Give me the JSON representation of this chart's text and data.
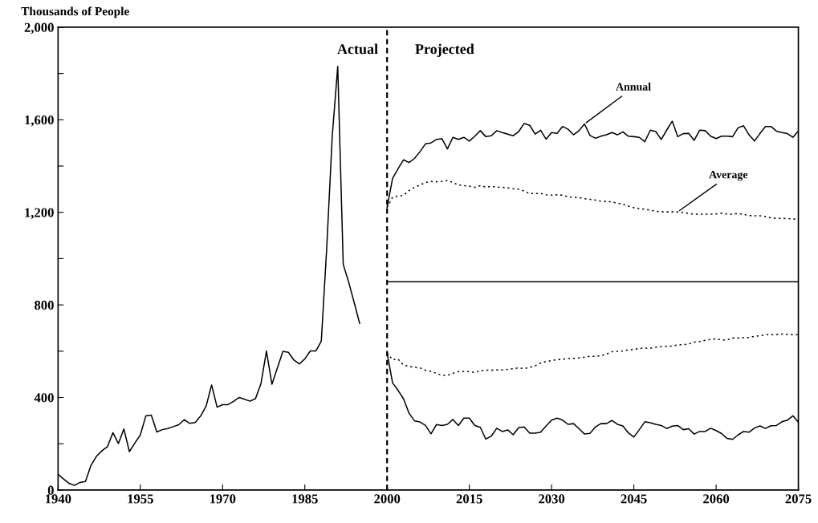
{
  "chart_data": {
    "type": "line",
    "ylabel": "Thousands of People",
    "xlim": [
      1940,
      2075
    ],
    "xticks": [
      1940,
      1955,
      1970,
      1985,
      2000,
      2015,
      2030,
      2045,
      2060,
      2075
    ],
    "ylim": [
      0,
      2000
    ],
    "yticks": [
      0,
      {
        "value": 200,
        "label": null
      },
      400,
      {
        "value": 600,
        "label": null
      },
      800,
      {
        "value": 1000,
        "label": null
      },
      {
        "value": 1200,
        "label": "1,200"
      },
      {
        "value": 1400,
        "label": null
      },
      {
        "value": 1600,
        "label": "1,600"
      },
      {
        "value": 1800,
        "label": null
      },
      {
        "value": 2000,
        "label": "2,000"
      }
    ],
    "grid": false,
    "legend": false,
    "ref_lines": [
      {
        "axis": "x",
        "value": 2000,
        "label": null,
        "color": "#000000",
        "line_style": "dashed"
      }
    ],
    "annotations": [
      "Actual",
      "Projected",
      {
        "text": "Annual",
        "x": 2036,
        "y": 1582
      },
      {
        "text": "Average",
        "x": 2053,
        "y": 1202
      }
    ],
    "series": [
      {
        "color": "#000000",
        "line_style": "solid",
        "x": [
          1940,
          1941,
          1942,
          1943,
          1944,
          1945,
          1946,
          1947,
          1948,
          1949,
          1950,
          1951,
          1952,
          1953,
          1954,
          1955,
          1956,
          1957,
          1958,
          1959,
          1960,
          1961,
          1962,
          1963,
          1964,
          1965,
          1966,
          1967,
          1968,
          1969,
          1970,
          1971,
          1972,
          1973,
          1974,
          1975,
          1976,
          1977,
          1978,
          1979,
          1980,
          1981,
          1982,
          1983,
          1984,
          1985,
          1986,
          1987,
          1988,
          1989,
          1990,
          1991,
          1992,
          1993,
          1994,
          1995
        ],
        "values": [
          68,
          48,
          29,
          20,
          33,
          37,
          107,
          146,
          170,
          187,
          248,
          201,
          264,
          166,
          203,
          238,
          320,
          324,
          251,
          261,
          266,
          274,
          282,
          304,
          288,
          292,
          320,
          363,
          454,
          358,
          369,
          369,
          383,
          400,
          392,
          384,
          395,
          460,
          601,
          457,
          528,
          599,
          595,
          562,
          545,
          567,
          601,
          601,
          643,
          1050,
          1530,
          1831,
          975,
          898,
          810,
          720
        ]
      },
      {
        "color": "#000000",
        "line_style": "solid",
        "x": [
          2000,
          2001,
          2002,
          2003,
          2004,
          2005,
          2006,
          2007,
          2008,
          2009,
          2010,
          2011,
          2012,
          2013,
          2014,
          2015,
          2016,
          2017,
          2018,
          2019,
          2020,
          2021,
          2022,
          2023,
          2024,
          2025,
          2026,
          2027,
          2028,
          2029,
          2030,
          2031,
          2032,
          2033,
          2034,
          2035,
          2036,
          2037,
          2038,
          2039,
          2040,
          2041,
          2042,
          2043,
          2044,
          2045,
          2046,
          2047,
          2048,
          2049,
          2050,
          2051,
          2052,
          2053,
          2054,
          2055,
          2056,
          2057,
          2058,
          2059,
          2060,
          2061,
          2062,
          2063,
          2064,
          2065,
          2066,
          2067,
          2068,
          2069,
          2070,
          2071,
          2072,
          2073,
          2074,
          2075
        ],
        "values": [
          1221,
          1347,
          1388,
          1427,
          1415,
          1433,
          1462,
          1496,
          1500,
          1515,
          1518,
          1474,
          1524,
          1515,
          1524,
          1508,
          1529,
          1553,
          1527,
          1531,
          1553,
          1545,
          1538,
          1531,
          1549,
          1584,
          1576,
          1538,
          1555,
          1516,
          1545,
          1541,
          1571,
          1559,
          1535,
          1553,
          1582,
          1532,
          1520,
          1529,
          1535,
          1545,
          1535,
          1548,
          1529,
          1527,
          1524,
          1505,
          1555,
          1549,
          1515,
          1556,
          1594,
          1527,
          1540,
          1541,
          1511,
          1555,
          1553,
          1529,
          1519,
          1529,
          1529,
          1527,
          1565,
          1574,
          1535,
          1508,
          1541,
          1571,
          1571,
          1551,
          1545,
          1540,
          1524,
          1551
        ]
      },
      {
        "color": "#000000",
        "line_style": "dotted",
        "x": [
          2000,
          2001,
          2002,
          2003,
          2004,
          2005,
          2006,
          2007,
          2008,
          2009,
          2010,
          2011,
          2012,
          2013,
          2014,
          2015,
          2016,
          2017,
          2018,
          2019,
          2020,
          2021,
          2022,
          2023,
          2024,
          2025,
          2026,
          2027,
          2028,
          2029,
          2030,
          2031,
          2032,
          2033,
          2034,
          2035,
          2036,
          2037,
          2038,
          2039,
          2040,
          2041,
          2042,
          2043,
          2044,
          2045,
          2046,
          2047,
          2048,
          2049,
          2050,
          2051,
          2052,
          2053,
          2054,
          2055,
          2056,
          2057,
          2058,
          2059,
          2060,
          2061,
          2062,
          2063,
          2064,
          2065,
          2066,
          2067,
          2068,
          2069,
          2070,
          2071,
          2072,
          2073,
          2074,
          2075
        ],
        "values": [
          1221,
          1265,
          1271,
          1273,
          1294,
          1308,
          1318,
          1329,
          1333,
          1332,
          1333,
          1338,
          1329,
          1318,
          1315,
          1313,
          1308,
          1315,
          1309,
          1312,
          1309,
          1308,
          1306,
          1302,
          1300,
          1292,
          1281,
          1281,
          1282,
          1276,
          1274,
          1276,
          1274,
          1268,
          1264,
          1264,
          1259,
          1256,
          1253,
          1248,
          1247,
          1245,
          1240,
          1235,
          1227,
          1220,
          1216,
          1213,
          1209,
          1205,
          1202,
          1202,
          1202,
          1202,
          1199,
          1195,
          1192,
          1192,
          1192,
          1192,
          1193,
          1196,
          1193,
          1192,
          1195,
          1191,
          1186,
          1185,
          1185,
          1182,
          1176,
          1174,
          1174,
          1173,
          1172,
          1169
        ]
      },
      {
        "color": "#000000",
        "line_style": "solid",
        "x": [
          2000,
          2075
        ],
        "values": [
          900,
          900
        ]
      },
      {
        "color": "#000000",
        "line_style": "solid",
        "x": [
          2000,
          2001,
          2002,
          2003,
          2004,
          2005,
          2006,
          2007,
          2008,
          2009,
          2010,
          2011,
          2012,
          2013,
          2014,
          2015,
          2016,
          2017,
          2018,
          2019,
          2020,
          2021,
          2022,
          2023,
          2024,
          2025,
          2026,
          2027,
          2028,
          2029,
          2030,
          2031,
          2032,
          2033,
          2034,
          2035,
          2036,
          2037,
          2038,
          2039,
          2040,
          2041,
          2042,
          2043,
          2044,
          2045,
          2046,
          2047,
          2048,
          2049,
          2050,
          2051,
          2052,
          2053,
          2054,
          2055,
          2056,
          2057,
          2058,
          2059,
          2060,
          2061,
          2062,
          2063,
          2064,
          2065,
          2066,
          2067,
          2068,
          2069,
          2070,
          2071,
          2072,
          2073,
          2074,
          2075
        ],
        "values": [
          593,
          463,
          431,
          394,
          332,
          299,
          294,
          279,
          243,
          283,
          279,
          284,
          305,
          279,
          311,
          311,
          279,
          271,
          220,
          233,
          267,
          253,
          260,
          239,
          270,
          273,
          246,
          246,
          250,
          277,
          302,
          311,
          302,
          284,
          287,
          265,
          242,
          245,
          273,
          287,
          287,
          301,
          284,
          277,
          247,
          229,
          261,
          295,
          291,
          284,
          279,
          266,
          276,
          279,
          261,
          265,
          242,
          253,
          253,
          267,
          257,
          244,
          223,
          219,
          238,
          253,
          250,
          268,
          277,
          266,
          278,
          279,
          295,
          302,
          321,
          293
        ]
      },
      {
        "color": "#000000",
        "line_style": "dotted",
        "x": [
          2000,
          2001,
          2002,
          2003,
          2004,
          2005,
          2006,
          2007,
          2008,
          2009,
          2010,
          2011,
          2012,
          2013,
          2014,
          2015,
          2016,
          2017,
          2018,
          2019,
          2020,
          2021,
          2022,
          2023,
          2024,
          2025,
          2026,
          2027,
          2028,
          2029,
          2030,
          2031,
          2032,
          2033,
          2034,
          2035,
          2036,
          2037,
          2038,
          2039,
          2040,
          2041,
          2042,
          2043,
          2044,
          2045,
          2046,
          2047,
          2048,
          2049,
          2050,
          2051,
          2052,
          2053,
          2054,
          2055,
          2056,
          2057,
          2058,
          2059,
          2060,
          2061,
          2062,
          2063,
          2064,
          2065,
          2066,
          2067,
          2068,
          2069,
          2070,
          2071,
          2072,
          2073,
          2074,
          2075
        ],
        "values": [
          593,
          563,
          566,
          540,
          535,
          530,
          528,
          518,
          513,
          504,
          496,
          496,
          504,
          512,
          513,
          512,
          508,
          515,
          518,
          518,
          519,
          519,
          521,
          524,
          528,
          525,
          530,
          537,
          549,
          555,
          559,
          564,
          565,
          569,
          569,
          571,
          574,
          578,
          578,
          580,
          587,
          598,
          599,
          601,
          606,
          607,
          612,
          613,
          613,
          617,
          620,
          621,
          622,
          627,
          628,
          631,
          639,
          642,
          647,
          651,
          653,
          649,
          648,
          657,
          657,
          659,
          659,
          664,
          667,
          671,
          671,
          672,
          674,
          673,
          671,
          671
        ]
      }
    ]
  }
}
